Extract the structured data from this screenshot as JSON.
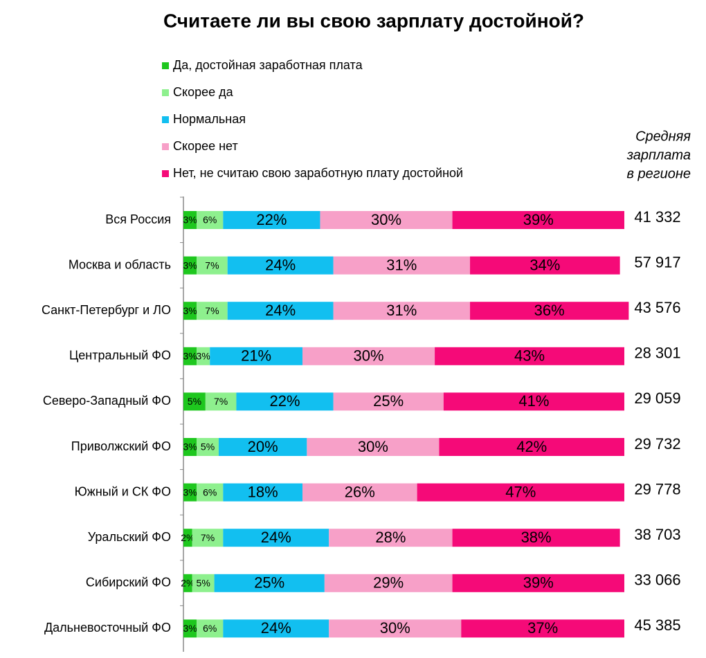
{
  "chart_data": {
    "type": "stacked_bar_horizontal",
    "title": "Считаете ли вы свою зарплату достойной?",
    "categories": [
      "Вся Россия",
      "Москва и область",
      "Санкт-Петербург и ЛО",
      "Центральный ФО",
      "Северо-Западный ФО",
      "Приволжский ФО",
      "Южный и СК ФО",
      "Уральский ФО",
      "Сибирский ФО",
      "Дальневосточный ФО"
    ],
    "xlim": [
      0,
      100
    ],
    "series": [
      {
        "name": "Да, достойная заработная плата",
        "color": "#1ec71e",
        "values": [
          3,
          3,
          3,
          3,
          5,
          3,
          3,
          2,
          2,
          3
        ],
        "value_labels": [
          "3%",
          "3%",
          "3%",
          "3%",
          "5%",
          "3%",
          "3%",
          "2%",
          "2%",
          "3%"
        ]
      },
      {
        "name": "Скорее да",
        "color": "#8ef08e",
        "values": [
          6,
          7,
          7,
          3,
          7,
          5,
          6,
          7,
          5,
          6
        ],
        "value_labels": [
          "6%",
          "7%",
          "7%",
          "3%",
          "7%",
          "5%",
          "6%",
          "7%",
          "5%",
          "6%"
        ]
      },
      {
        "name": "Нормальная",
        "color": "#12bff0",
        "values": [
          22,
          24,
          24,
          21,
          22,
          20,
          18,
          24,
          25,
          24
        ],
        "value_labels": [
          "22%",
          "24%",
          "24%",
          "21%",
          "22%",
          "20%",
          "18%",
          "24%",
          "25%",
          "24%"
        ]
      },
      {
        "name": "Скорее нет",
        "color": "#f7a0c8",
        "values": [
          30,
          31,
          31,
          30,
          25,
          30,
          26,
          28,
          29,
          30
        ],
        "value_labels": [
          "30%",
          "31%",
          "31%",
          "30%",
          "25%",
          "30%",
          "26%",
          "28%",
          "29%",
          "30%"
        ]
      },
      {
        "name": "Нет, не считаю свою заработную плату достойной",
        "color": "#f50a78",
        "values": [
          39,
          34,
          36,
          43,
          41,
          42,
          47,
          38,
          39,
          37
        ],
        "value_labels": [
          "39%",
          "34%",
          "36%",
          "43%",
          "41%",
          "42%",
          "47%",
          "38%",
          "39%",
          "37%"
        ]
      }
    ],
    "salary": {
      "title": [
        "Средняя",
        "зарплата",
        "в регионе"
      ],
      "values": [
        41332,
        57917,
        43576,
        28301,
        29059,
        29732,
        29778,
        38703,
        33066,
        45385
      ],
      "value_labels": [
        "41 332",
        "57 917",
        "43 576",
        "28 301",
        "29 059",
        "29 732",
        "29 778",
        "38 703",
        "33 066",
        "45 385"
      ]
    }
  }
}
